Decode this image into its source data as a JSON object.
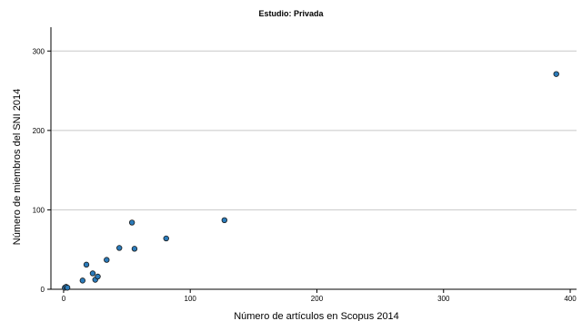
{
  "chart_data": {
    "type": "scatter",
    "title": "Estudio: Privada",
    "xlabel": "Número de artículos en Scopus 2014",
    "ylabel": "Número de miembros del SNI 2014",
    "xlim": [
      -10,
      405
    ],
    "ylim": [
      0,
      330
    ],
    "xticks": [
      0,
      100,
      200,
      300,
      400
    ],
    "yticks": [
      0,
      100,
      200,
      300
    ],
    "grid": "horizontal",
    "point_color": "#2b7bba",
    "points": [
      {
        "x": 1,
        "y": 2
      },
      {
        "x": 2,
        "y": 3
      },
      {
        "x": 3,
        "y": 2
      },
      {
        "x": 15,
        "y": 11
      },
      {
        "x": 18,
        "y": 31
      },
      {
        "x": 23,
        "y": 20
      },
      {
        "x": 25,
        "y": 12
      },
      {
        "x": 27,
        "y": 16
      },
      {
        "x": 34,
        "y": 37
      },
      {
        "x": 44,
        "y": 52
      },
      {
        "x": 54,
        "y": 84
      },
      {
        "x": 56,
        "y": 51
      },
      {
        "x": 81,
        "y": 64
      },
      {
        "x": 127,
        "y": 87
      },
      {
        "x": 389,
        "y": 271
      }
    ]
  }
}
